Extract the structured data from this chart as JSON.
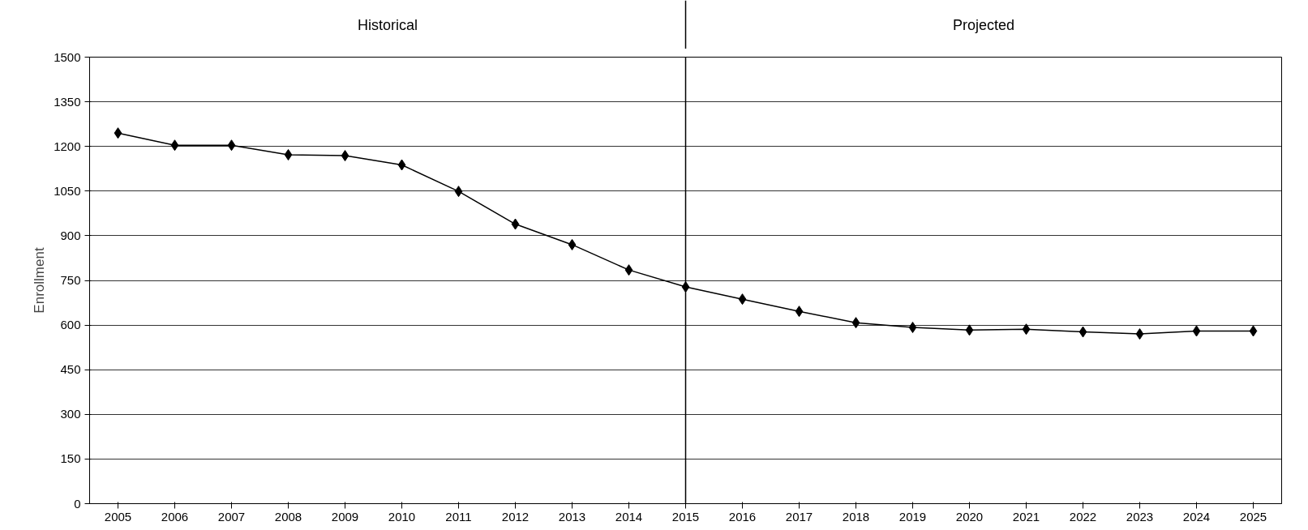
{
  "chart_data": {
    "type": "line",
    "ylabel": "Enrollment",
    "categories": [
      "2005",
      "2006",
      "2007",
      "2008",
      "2009",
      "2010",
      "2011",
      "2012",
      "2013",
      "2014",
      "2015",
      "2016",
      "2017",
      "2018",
      "2019",
      "2020",
      "2021",
      "2022",
      "2023",
      "2024",
      "2025"
    ],
    "series": [
      {
        "color": "#000000",
        "values": [
          1245,
          1204,
          1204,
          1172,
          1169,
          1138,
          1049,
          939,
          870,
          785,
          728,
          687,
          646,
          608,
          592,
          583,
          586,
          577,
          570,
          580,
          580
        ]
      }
    ],
    "ylim": [
      0,
      1500
    ],
    "yticks": [
      0,
      150,
      300,
      450,
      600,
      750,
      900,
      1050,
      1200,
      1350,
      1500
    ],
    "grid": "y",
    "marker": "diamond",
    "line_style": "solid",
    "ref_lines": [
      {
        "axis": "x",
        "value": "2015",
        "color": "#000000"
      }
    ],
    "annotations": [
      "Historical",
      "Projected"
    ]
  }
}
